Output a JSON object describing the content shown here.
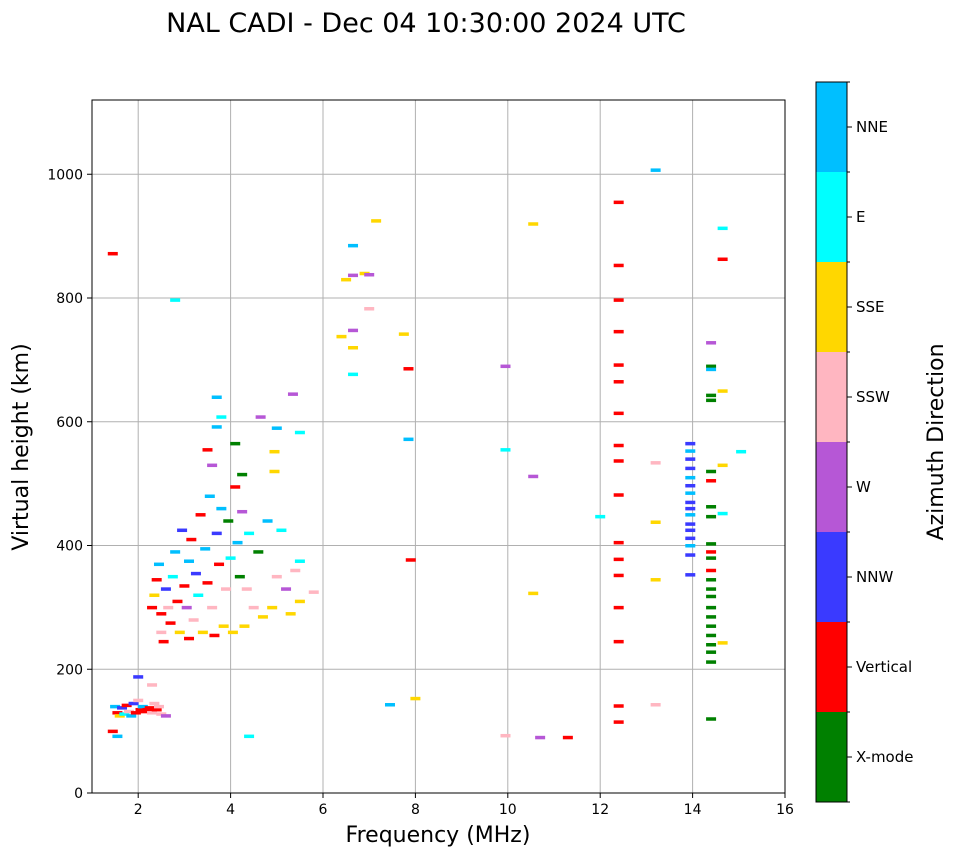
{
  "chart_data": {
    "type": "scatter",
    "title": "NAL CADI - Dec 04 10:30:00 2024 UTC",
    "xlabel": "Frequency (MHz)",
    "ylabel": "Virtual height (km)",
    "xlim": [
      1,
      16
    ],
    "ylim": [
      0,
      1120
    ],
    "xticks": [
      2,
      4,
      6,
      8,
      10,
      12,
      14,
      16
    ],
    "yticks": [
      0,
      200,
      400,
      600,
      800,
      1000
    ],
    "grid": true,
    "colorbar": {
      "label": "Azimuth Direction",
      "categories": [
        {
          "name": "X-mode",
          "color": "#008000"
        },
        {
          "name": "Vertical",
          "color": "#ff0000"
        },
        {
          "name": "NNW",
          "color": "#3a3aff"
        },
        {
          "name": "W",
          "color": "#b657d6"
        },
        {
          "name": "SSW",
          "color": "#ffb6c1"
        },
        {
          "name": "SSE",
          "color": "#ffd700"
        },
        {
          "name": "E",
          "color": "#00ffff"
        },
        {
          "name": "NNE",
          "color": "#00bfff"
        }
      ]
    },
    "points": [
      {
        "f": 1.45,
        "h": 872,
        "c": "Vertical"
      },
      {
        "f": 1.45,
        "h": 100,
        "c": "Vertical"
      },
      {
        "f": 1.55,
        "h": 92,
        "c": "NNE"
      },
      {
        "f": 1.5,
        "h": 140,
        "c": "NNE"
      },
      {
        "f": 1.55,
        "h": 130,
        "c": "Vertical"
      },
      {
        "f": 1.6,
        "h": 125,
        "c": "SSE"
      },
      {
        "f": 1.65,
        "h": 138,
        "c": "NNW"
      },
      {
        "f": 1.7,
        "h": 128,
        "c": "E"
      },
      {
        "f": 1.75,
        "h": 142,
        "c": "Vertical"
      },
      {
        "f": 1.8,
        "h": 132,
        "c": "SSW"
      },
      {
        "f": 1.85,
        "h": 125,
        "c": "NNE"
      },
      {
        "f": 1.9,
        "h": 145,
        "c": "NNW"
      },
      {
        "f": 1.95,
        "h": 130,
        "c": "Vertical"
      },
      {
        "f": 2.0,
        "h": 150,
        "c": "SSW"
      },
      {
        "f": 2.0,
        "h": 188,
        "c": "NNW"
      },
      {
        "f": 2.05,
        "h": 135,
        "c": "Vertical"
      },
      {
        "f": 2.1,
        "h": 140,
        "c": "NNE"
      },
      {
        "f": 2.15,
        "h": 132,
        "c": "Vertical"
      },
      {
        "f": 2.2,
        "h": 135,
        "c": "Vertical"
      },
      {
        "f": 2.25,
        "h": 138,
        "c": "Vertical"
      },
      {
        "f": 2.3,
        "h": 130,
        "c": "SSW"
      },
      {
        "f": 2.35,
        "h": 145,
        "c": "SSW"
      },
      {
        "f": 2.4,
        "h": 135,
        "c": "Vertical"
      },
      {
        "f": 2.45,
        "h": 140,
        "c": "SSW"
      },
      {
        "f": 2.5,
        "h": 128,
        "c": "SSW"
      },
      {
        "f": 2.6,
        "h": 125,
        "c": "W"
      },
      {
        "f": 2.3,
        "h": 175,
        "c": "SSW"
      },
      {
        "f": 2.3,
        "h": 300,
        "c": "Vertical"
      },
      {
        "f": 2.35,
        "h": 320,
        "c": "SSE"
      },
      {
        "f": 2.4,
        "h": 345,
        "c": "Vertical"
      },
      {
        "f": 2.45,
        "h": 370,
        "c": "NNE"
      },
      {
        "f": 2.5,
        "h": 290,
        "c": "Vertical"
      },
      {
        "f": 2.5,
        "h": 260,
        "c": "SSW"
      },
      {
        "f": 2.55,
        "h": 245,
        "c": "Vertical"
      },
      {
        "f": 2.6,
        "h": 330,
        "c": "NNW"
      },
      {
        "f": 2.65,
        "h": 300,
        "c": "SSW"
      },
      {
        "f": 2.7,
        "h": 275,
        "c": "Vertical"
      },
      {
        "f": 2.75,
        "h": 350,
        "c": "E"
      },
      {
        "f": 2.8,
        "h": 390,
        "c": "NNE"
      },
      {
        "f": 2.85,
        "h": 310,
        "c": "Vertical"
      },
      {
        "f": 2.9,
        "h": 260,
        "c": "SSE"
      },
      {
        "f": 2.95,
        "h": 425,
        "c": "NNW"
      },
      {
        "f": 3.0,
        "h": 335,
        "c": "Vertical"
      },
      {
        "f": 3.05,
        "h": 300,
        "c": "W"
      },
      {
        "f": 3.1,
        "h": 250,
        "c": "Vertical"
      },
      {
        "f": 3.1,
        "h": 375,
        "c": "NNE"
      },
      {
        "f": 3.15,
        "h": 410,
        "c": "Vertical"
      },
      {
        "f": 3.2,
        "h": 280,
        "c": "SSW"
      },
      {
        "f": 3.25,
        "h": 355,
        "c": "NNW"
      },
      {
        "f": 3.3,
        "h": 320,
        "c": "E"
      },
      {
        "f": 3.35,
        "h": 450,
        "c": "Vertical"
      },
      {
        "f": 3.4,
        "h": 260,
        "c": "SSE"
      },
      {
        "f": 3.45,
        "h": 395,
        "c": "NNE"
      },
      {
        "f": 3.5,
        "h": 340,
        "c": "Vertical"
      },
      {
        "f": 3.55,
        "h": 480,
        "c": "NNE"
      },
      {
        "f": 3.6,
        "h": 300,
        "c": "SSW"
      },
      {
        "f": 3.6,
        "h": 530,
        "c": "W"
      },
      {
        "f": 3.65,
        "h": 255,
        "c": "Vertical"
      },
      {
        "f": 3.7,
        "h": 420,
        "c": "NNW"
      },
      {
        "f": 3.75,
        "h": 370,
        "c": "Vertical"
      },
      {
        "f": 3.8,
        "h": 460,
        "c": "NNE"
      },
      {
        "f": 3.85,
        "h": 270,
        "c": "SSE"
      },
      {
        "f": 3.9,
        "h": 330,
        "c": "SSW"
      },
      {
        "f": 3.95,
        "h": 440,
        "c": "X-mode"
      },
      {
        "f": 4.0,
        "h": 380,
        "c": "E"
      },
      {
        "f": 4.05,
        "h": 260,
        "c": "SSE"
      },
      {
        "f": 4.1,
        "h": 495,
        "c": "Vertical"
      },
      {
        "f": 4.15,
        "h": 405,
        "c": "NNE"
      },
      {
        "f": 4.2,
        "h": 350,
        "c": "X-mode"
      },
      {
        "f": 4.25,
        "h": 455,
        "c": "W"
      },
      {
        "f": 4.3,
        "h": 270,
        "c": "SSE"
      },
      {
        "f": 4.35,
        "h": 330,
        "c": "SSW"
      },
      {
        "f": 4.4,
        "h": 420,
        "c": "E"
      },
      {
        "f": 4.5,
        "h": 300,
        "c": "SSW"
      },
      {
        "f": 4.6,
        "h": 390,
        "c": "X-mode"
      },
      {
        "f": 4.7,
        "h": 285,
        "c": "SSE"
      },
      {
        "f": 4.8,
        "h": 440,
        "c": "NNE"
      },
      {
        "f": 4.9,
        "h": 300,
        "c": "SSE"
      },
      {
        "f": 5.0,
        "h": 350,
        "c": "SSW"
      },
      {
        "f": 5.1,
        "h": 425,
        "c": "E"
      },
      {
        "f": 5.2,
        "h": 330,
        "c": "W"
      },
      {
        "f": 5.3,
        "h": 290,
        "c": "SSE"
      },
      {
        "f": 5.4,
        "h": 360,
        "c": "SSW"
      },
      {
        "f": 5.5,
        "h": 310,
        "c": "SSE"
      },
      {
        "f": 5.5,
        "h": 375,
        "c": "E"
      },
      {
        "f": 5.8,
        "h": 325,
        "c": "SSW"
      },
      {
        "f": 3.5,
        "h": 555,
        "c": "Vertical"
      },
      {
        "f": 3.7,
        "h": 592,
        "c": "NNE"
      },
      {
        "f": 3.7,
        "h": 640,
        "c": "NNE"
      },
      {
        "f": 3.8,
        "h": 608,
        "c": "E"
      },
      {
        "f": 4.1,
        "h": 565,
        "c": "X-mode"
      },
      {
        "f": 4.25,
        "h": 515,
        "c": "X-mode"
      },
      {
        "f": 4.65,
        "h": 608,
        "c": "W"
      },
      {
        "f": 4.95,
        "h": 552,
        "c": "SSE"
      },
      {
        "f": 4.95,
        "h": 520,
        "c": "SSE"
      },
      {
        "f": 5.0,
        "h": 590,
        "c": "NNE"
      },
      {
        "f": 5.35,
        "h": 645,
        "c": "W"
      },
      {
        "f": 5.5,
        "h": 583,
        "c": "E"
      },
      {
        "f": 4.4,
        "h": 92,
        "c": "E"
      },
      {
        "f": 2.8,
        "h": 797,
        "c": "E"
      },
      {
        "f": 6.4,
        "h": 738,
        "c": "SSE"
      },
      {
        "f": 6.5,
        "h": 830,
        "c": "SSE"
      },
      {
        "f": 6.65,
        "h": 885,
        "c": "NNE"
      },
      {
        "f": 6.65,
        "h": 748,
        "c": "W"
      },
      {
        "f": 6.65,
        "h": 720,
        "c": "SSE"
      },
      {
        "f": 6.65,
        "h": 677,
        "c": "E"
      },
      {
        "f": 6.65,
        "h": 837,
        "c": "W"
      },
      {
        "f": 6.9,
        "h": 840,
        "c": "SSE"
      },
      {
        "f": 7.0,
        "h": 838,
        "c": "W"
      },
      {
        "f": 7.0,
        "h": 783,
        "c": "SSW"
      },
      {
        "f": 7.15,
        "h": 925,
        "c": "SSE"
      },
      {
        "f": 7.75,
        "h": 742,
        "c": "SSE"
      },
      {
        "f": 7.85,
        "h": 686,
        "c": "Vertical"
      },
      {
        "f": 7.85,
        "h": 572,
        "c": "NNE"
      },
      {
        "f": 7.9,
        "h": 377,
        "c": "Vertical"
      },
      {
        "f": 8.0,
        "h": 153,
        "c": "SSE"
      },
      {
        "f": 7.45,
        "h": 143,
        "c": "NNE"
      },
      {
        "f": 9.95,
        "h": 690,
        "c": "W"
      },
      {
        "f": 9.95,
        "h": 555,
        "c": "E"
      },
      {
        "f": 9.95,
        "h": 93,
        "c": "SSW"
      },
      {
        "f": 10.55,
        "h": 920,
        "c": "SSE"
      },
      {
        "f": 10.55,
        "h": 512,
        "c": "W"
      },
      {
        "f": 10.55,
        "h": 323,
        "c": "SSE"
      },
      {
        "f": 10.7,
        "h": 90,
        "c": "W"
      },
      {
        "f": 11.3,
        "h": 90,
        "c": "Vertical"
      },
      {
        "f": 12.0,
        "h": 447,
        "c": "E"
      },
      {
        "f": 12.4,
        "h": 955,
        "c": "Vertical"
      },
      {
        "f": 12.4,
        "h": 853,
        "c": "Vertical"
      },
      {
        "f": 12.4,
        "h": 797,
        "c": "Vertical"
      },
      {
        "f": 12.4,
        "h": 746,
        "c": "Vertical"
      },
      {
        "f": 12.4,
        "h": 692,
        "c": "Vertical"
      },
      {
        "f": 12.4,
        "h": 665,
        "c": "Vertical"
      },
      {
        "f": 12.4,
        "h": 614,
        "c": "Vertical"
      },
      {
        "f": 12.4,
        "h": 562,
        "c": "Vertical"
      },
      {
        "f": 12.4,
        "h": 537,
        "c": "Vertical"
      },
      {
        "f": 12.4,
        "h": 482,
        "c": "Vertical"
      },
      {
        "f": 12.4,
        "h": 405,
        "c": "Vertical"
      },
      {
        "f": 12.4,
        "h": 378,
        "c": "Vertical"
      },
      {
        "f": 12.4,
        "h": 352,
        "c": "Vertical"
      },
      {
        "f": 12.4,
        "h": 300,
        "c": "Vertical"
      },
      {
        "f": 12.4,
        "h": 245,
        "c": "Vertical"
      },
      {
        "f": 12.4,
        "h": 141,
        "c": "Vertical"
      },
      {
        "f": 12.4,
        "h": 115,
        "c": "Vertical"
      },
      {
        "f": 13.2,
        "h": 1007,
        "c": "NNE"
      },
      {
        "f": 13.2,
        "h": 534,
        "c": "SSW"
      },
      {
        "f": 13.2,
        "h": 438,
        "c": "SSE"
      },
      {
        "f": 13.2,
        "h": 345,
        "c": "SSE"
      },
      {
        "f": 13.2,
        "h": 143,
        "c": "SSW"
      },
      {
        "f": 13.95,
        "h": 565,
        "c": "NNW"
      },
      {
        "f": 13.95,
        "h": 553,
        "c": "NNE"
      },
      {
        "f": 13.95,
        "h": 540,
        "c": "NNW"
      },
      {
        "f": 13.95,
        "h": 525,
        "c": "NNW"
      },
      {
        "f": 13.95,
        "h": 510,
        "c": "NNE"
      },
      {
        "f": 13.95,
        "h": 497,
        "c": "NNW"
      },
      {
        "f": 13.95,
        "h": 485,
        "c": "NNE"
      },
      {
        "f": 13.95,
        "h": 470,
        "c": "NNW"
      },
      {
        "f": 13.95,
        "h": 460,
        "c": "NNW"
      },
      {
        "f": 13.95,
        "h": 450,
        "c": "NNE"
      },
      {
        "f": 13.95,
        "h": 435,
        "c": "NNW"
      },
      {
        "f": 13.95,
        "h": 425,
        "c": "NNW"
      },
      {
        "f": 13.95,
        "h": 412,
        "c": "NNW"
      },
      {
        "f": 13.95,
        "h": 400,
        "c": "NNE"
      },
      {
        "f": 13.95,
        "h": 385,
        "c": "NNW"
      },
      {
        "f": 13.95,
        "h": 353,
        "c": "NNW"
      },
      {
        "f": 14.4,
        "h": 728,
        "c": "W"
      },
      {
        "f": 14.4,
        "h": 690,
        "c": "X-mode"
      },
      {
        "f": 14.4,
        "h": 685,
        "c": "NNE"
      },
      {
        "f": 14.4,
        "h": 643,
        "c": "X-mode"
      },
      {
        "f": 14.4,
        "h": 635,
        "c": "X-mode"
      },
      {
        "f": 14.4,
        "h": 520,
        "c": "X-mode"
      },
      {
        "f": 14.4,
        "h": 505,
        "c": "Vertical"
      },
      {
        "f": 14.4,
        "h": 463,
        "c": "X-mode"
      },
      {
        "f": 14.4,
        "h": 447,
        "c": "X-mode"
      },
      {
        "f": 14.4,
        "h": 403,
        "c": "X-mode"
      },
      {
        "f": 14.4,
        "h": 390,
        "c": "Vertical"
      },
      {
        "f": 14.4,
        "h": 380,
        "c": "X-mode"
      },
      {
        "f": 14.4,
        "h": 360,
        "c": "Vertical"
      },
      {
        "f": 14.4,
        "h": 345,
        "c": "X-mode"
      },
      {
        "f": 14.4,
        "h": 330,
        "c": "X-mode"
      },
      {
        "f": 14.4,
        "h": 318,
        "c": "X-mode"
      },
      {
        "f": 14.4,
        "h": 300,
        "c": "X-mode"
      },
      {
        "f": 14.4,
        "h": 285,
        "c": "X-mode"
      },
      {
        "f": 14.4,
        "h": 270,
        "c": "X-mode"
      },
      {
        "f": 14.4,
        "h": 255,
        "c": "X-mode"
      },
      {
        "f": 14.4,
        "h": 240,
        "c": "X-mode"
      },
      {
        "f": 14.4,
        "h": 228,
        "c": "X-mode"
      },
      {
        "f": 14.4,
        "h": 212,
        "c": "X-mode"
      },
      {
        "f": 14.4,
        "h": 120,
        "c": "X-mode"
      },
      {
        "f": 14.65,
        "h": 913,
        "c": "E"
      },
      {
        "f": 14.65,
        "h": 863,
        "c": "Vertical"
      },
      {
        "f": 14.65,
        "h": 650,
        "c": "SSE"
      },
      {
        "f": 14.65,
        "h": 530,
        "c": "SSE"
      },
      {
        "f": 14.65,
        "h": 452,
        "c": "E"
      },
      {
        "f": 14.65,
        "h": 243,
        "c": "SSE"
      },
      {
        "f": 15.05,
        "h": 552,
        "c": "E"
      }
    ]
  }
}
